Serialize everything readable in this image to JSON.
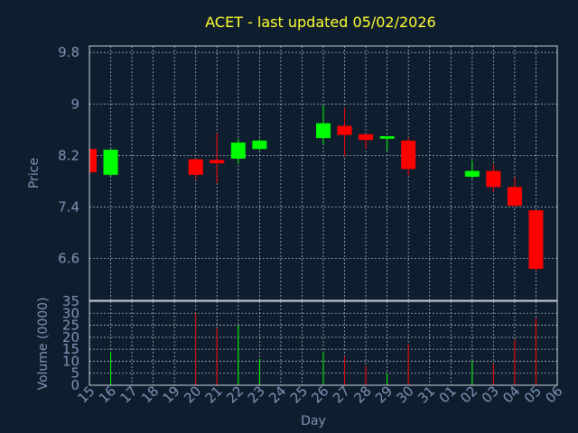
{
  "chart_data": {
    "type": "candlestick",
    "title": "ACET - last updated 05/02/2026",
    "xlabel": "Day",
    "ylabel_price": "Price",
    "ylabel_volume": "Volume (0000)",
    "x_ticks": [
      "15",
      "16",
      "17",
      "18",
      "19",
      "20",
      "21",
      "22",
      "23",
      "24",
      "25",
      "26",
      "27",
      "28",
      "29",
      "30",
      "31",
      "01",
      "02",
      "03",
      "04",
      "05",
      "06"
    ],
    "price_ticks": [
      "9.8",
      "9",
      "8.2",
      "7.4",
      "6.6"
    ],
    "price_tick_values": [
      9.8,
      9.0,
      8.2,
      7.4,
      6.6
    ],
    "price_range": [
      5.95,
      9.9
    ],
    "volume_ticks": [
      "35",
      "30",
      "25",
      "20",
      "15",
      "10",
      "5",
      "0"
    ],
    "volume_tick_values": [
      35,
      30,
      25,
      20,
      15,
      10,
      5,
      0
    ],
    "volume_range": [
      0,
      35
    ],
    "colors": {
      "up": "#00ff00",
      "down": "#ff0000",
      "title": "#ffff33",
      "axis_text": "#7f93b5",
      "background": "#0f1e2e"
    },
    "candles": [
      {
        "day": 15.0,
        "open": 8.3,
        "close": 7.94,
        "high": 8.3,
        "low": 7.94,
        "volume": 0
      },
      {
        "day": 16.0,
        "open": 7.9,
        "close": 8.29,
        "high": 8.3,
        "low": 7.88,
        "volume": 14
      },
      {
        "day": 20.0,
        "open": 8.14,
        "close": 7.9,
        "high": 8.15,
        "low": 7.83,
        "volume": 30
      },
      {
        "day": 21.0,
        "open": 8.13,
        "close": 8.08,
        "high": 8.55,
        "low": 7.77,
        "volume": 24
      },
      {
        "day": 22.0,
        "open": 8.15,
        "close": 8.4,
        "high": 8.46,
        "low": 8.07,
        "volume": 25
      },
      {
        "day": 23.0,
        "open": 8.3,
        "close": 8.43,
        "high": 8.45,
        "low": 8.28,
        "volume": 11
      },
      {
        "day": 26.0,
        "open": 8.47,
        "close": 8.7,
        "high": 8.98,
        "low": 8.37,
        "volume": 14
      },
      {
        "day": 27.0,
        "open": 8.66,
        "close": 8.52,
        "high": 8.94,
        "low": 8.19,
        "volume": 12
      },
      {
        "day": 28.0,
        "open": 8.53,
        "close": 8.44,
        "high": 8.53,
        "low": 8.3,
        "volume": 8
      },
      {
        "day": 29.0,
        "open": 8.46,
        "close": 8.5,
        "high": 8.5,
        "low": 8.27,
        "volume": 5
      },
      {
        "day": 30.0,
        "open": 8.43,
        "close": 7.99,
        "high": 8.48,
        "low": 7.89,
        "volume": 17
      },
      {
        "day": 2.0,
        "open": 7.87,
        "close": 7.96,
        "high": 8.12,
        "low": 7.84,
        "volume": 10
      },
      {
        "day": 3.0,
        "open": 7.96,
        "close": 7.71,
        "high": 8.07,
        "low": 7.64,
        "volume": 9
      },
      {
        "day": 4.0,
        "open": 7.71,
        "close": 7.42,
        "high": 7.86,
        "low": 7.4,
        "volume": 19
      },
      {
        "day": 5.0,
        "open": 7.35,
        "close": 6.44,
        "high": 7.35,
        "low": 6.41,
        "volume": 28
      }
    ]
  }
}
